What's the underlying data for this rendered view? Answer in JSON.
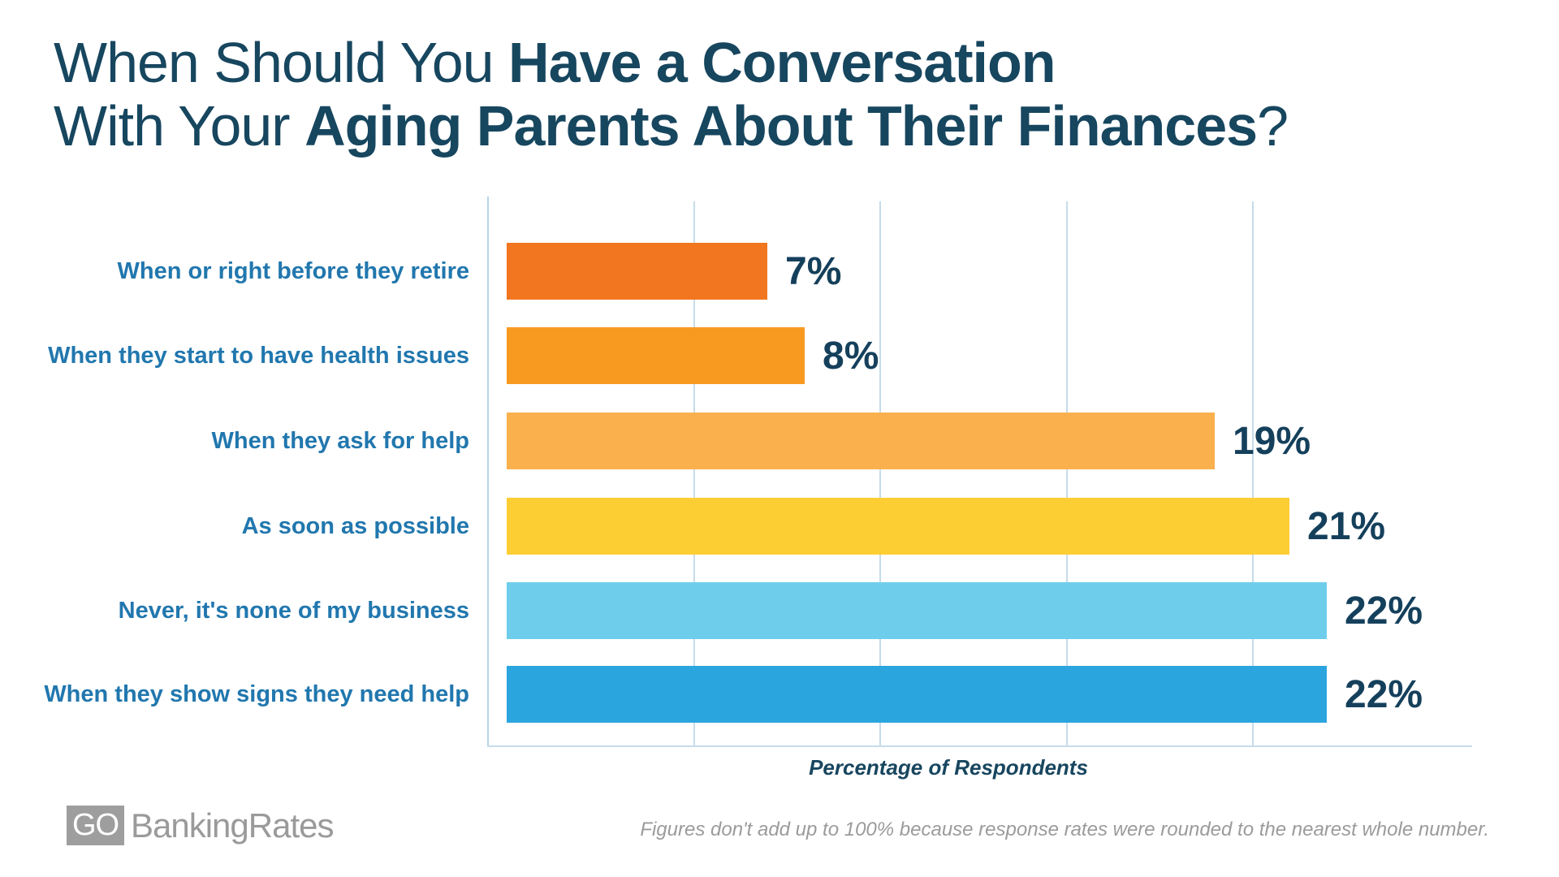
{
  "title": {
    "line1_regular": "When Should You ",
    "line1_bold": "Have a Conversation",
    "line2_regular": "With Your ",
    "line2_bold": "Aging Parents About Their Finances",
    "line2_suffix": "?"
  },
  "chart_data": {
    "type": "bar",
    "orientation": "horizontal",
    "categories": [
      "When or right before they retire",
      "When they start to have health issues",
      "When they ask for help",
      "As soon as possible",
      "Never, it's none of my business",
      "When they show signs they need help"
    ],
    "values": [
      7,
      8,
      19,
      21,
      22,
      22
    ],
    "value_labels": [
      "7%",
      "8%",
      "19%",
      "21%",
      "22%",
      "22%"
    ],
    "bar_colors": [
      "#F1761F",
      "#F89A20",
      "#FAB04D",
      "#FDCE33",
      "#6FCDEC",
      "#2BA5DE"
    ],
    "xlabel": "Percentage of Respondents",
    "xlim": [
      0,
      26
    ],
    "grid_percents": [
      5,
      10,
      15,
      20
    ],
    "grid": true,
    "legend_position": "none"
  },
  "footer": {
    "note": "Figures don't add up to 100% because response rates were rounded to the nearest whole number.",
    "logo_go": "GO",
    "logo_text": "BankingRates"
  },
  "colors": {
    "background": "#FFFFFF",
    "title": "#17465F",
    "category_label": "#2177AE",
    "value_label": "#15405C",
    "gridline": "#C6DCEA",
    "axis_line": "#B9D3E3",
    "note_text": "#9B9B9B",
    "logo_gray": "#9E9E9E"
  }
}
